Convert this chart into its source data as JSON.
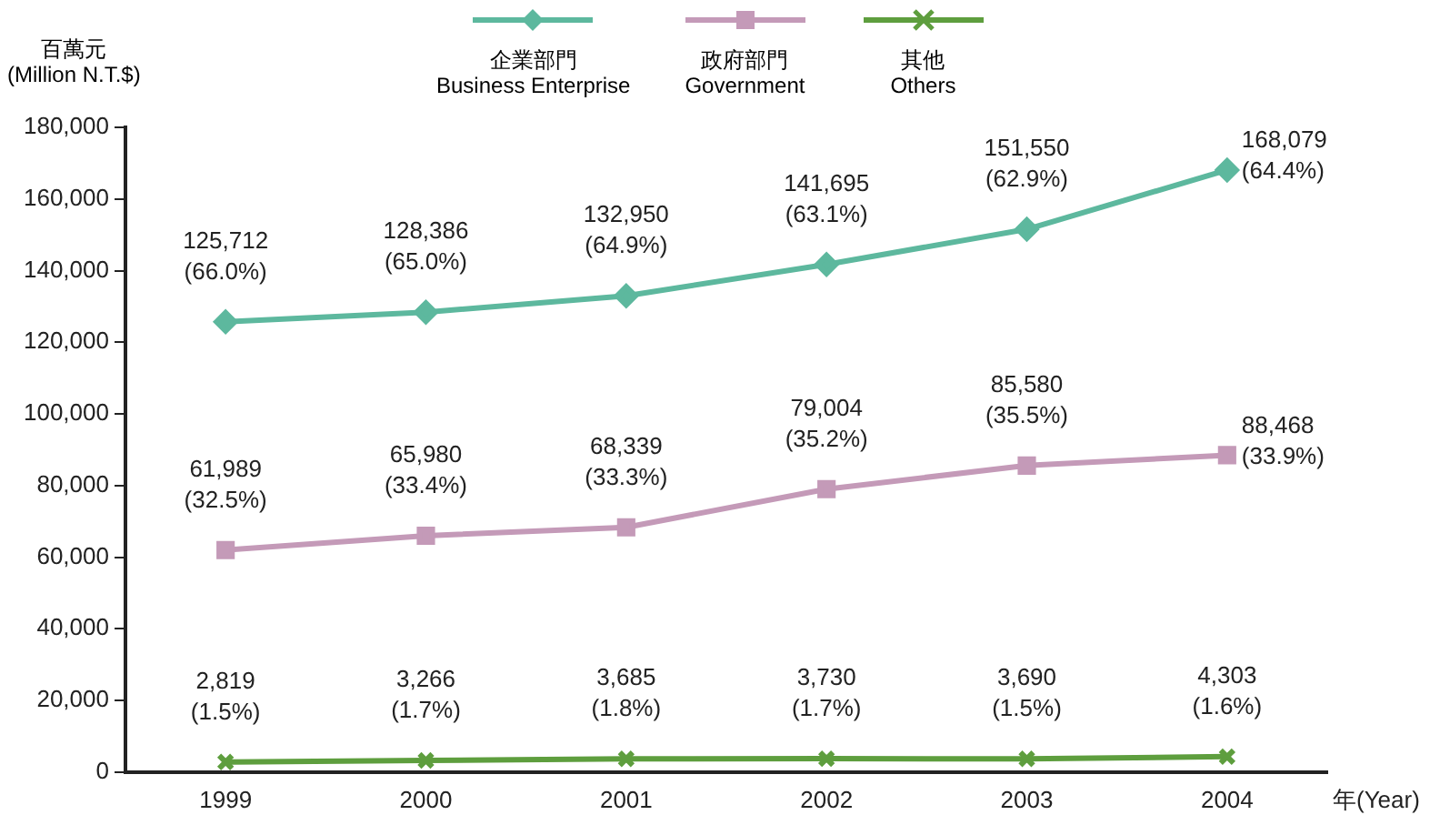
{
  "chart_data": {
    "type": "line",
    "ylabel": "百萬元\n(Million N.T.$)",
    "xlabel": "年(Year)",
    "categories": [
      "1999",
      "2000",
      "2001",
      "2002",
      "2003",
      "2004"
    ],
    "ylim": [
      0,
      180000
    ],
    "yticks": [
      {
        "value": 0,
        "label": "0"
      },
      {
        "value": 20000,
        "label": "20,000"
      },
      {
        "value": 40000,
        "label": "40,000"
      },
      {
        "value": 60000,
        "label": "60,000"
      },
      {
        "value": 80000,
        "label": "80,000"
      },
      {
        "value": 100000,
        "label": "100,000"
      },
      {
        "value": 120000,
        "label": "120,000"
      },
      {
        "value": 140000,
        "label": "140,000"
      },
      {
        "value": 160000,
        "label": "160,000"
      },
      {
        "value": 180000,
        "label": "180,000"
      }
    ],
    "grid": false,
    "legend": "top",
    "line_style": "solid",
    "series": [
      {
        "name": "企業部門\nBusiness Enterprise",
        "color": "#5db89e",
        "marker": "diamond",
        "values": [
          125712,
          128386,
          132950,
          141695,
          151550,
          168079
        ],
        "value_labels": [
          "125,712\n(66.0%)",
          "128,386\n(65.0%)",
          "132,950\n(64.9%)",
          "141,695\n(63.1%)",
          "151,550\n(62.9%)",
          "168,079\n(64.4%)"
        ]
      },
      {
        "name": "政府部門\nGovernment",
        "color": "#c49ab8",
        "marker": "square",
        "values": [
          61989,
          65980,
          68339,
          79004,
          85580,
          88468
        ],
        "value_labels": [
          "61,989\n(32.5%)",
          "65,980\n(33.4%)",
          "68,339\n(33.3%)",
          "79,004\n(35.2%)",
          "85,580\n(35.5%)",
          "88,468\n(33.9%)"
        ]
      },
      {
        "name": "其他\nOthers",
        "color": "#5e9e3e",
        "marker": "cross",
        "values": [
          2819,
          3266,
          3685,
          3730,
          3690,
          4303
        ],
        "value_labels": [
          "2,819\n(1.5%)",
          "3,266\n(1.7%)",
          "3,685\n(1.8%)",
          "3,730\n(1.7%)",
          "3,690\n(1.5%)",
          "4,303\n(1.6%)"
        ]
      }
    ]
  }
}
